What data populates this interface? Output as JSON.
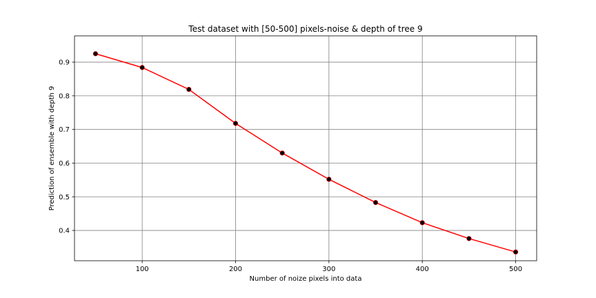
{
  "chart_data": {
    "type": "line",
    "title": "Test dataset with [50-500] pixels-noise & depth of tree 9",
    "xlabel": "Number of noize pixels into data",
    "ylabel": "Prediction of ensemble with depth 9",
    "x": [
      50,
      100,
      150,
      200,
      250,
      300,
      350,
      400,
      450,
      500
    ],
    "series": [
      {
        "values": [
          0.925,
          0.884,
          0.819,
          0.718,
          0.63,
          0.552,
          0.483,
          0.423,
          0.376,
          0.336
        ]
      }
    ],
    "xlim": [
      27.5,
      522.5
    ],
    "ylim": [
      0.31,
      0.978
    ],
    "xticks": [
      100,
      200,
      300,
      400,
      500
    ],
    "xtick_labels": [
      "100",
      "200",
      "300",
      "400",
      "500"
    ],
    "yticks": [
      0.4,
      0.5,
      0.6,
      0.7,
      0.8,
      0.9
    ],
    "ytick_labels": [
      "0.4",
      "0.5",
      "0.6",
      "0.7",
      "0.8",
      "0.9"
    ],
    "grid": true,
    "line_color": "#ff0000",
    "marker_color": "#000000",
    "grid_color": "#808080"
  }
}
